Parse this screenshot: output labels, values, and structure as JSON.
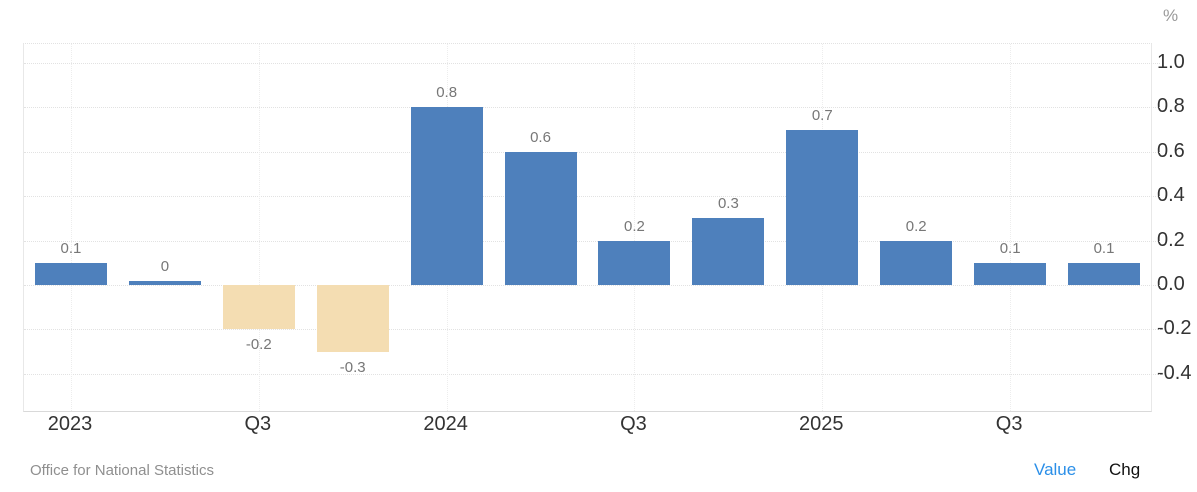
{
  "chart_data": {
    "type": "bar",
    "title": "",
    "unit": "%",
    "values": [
      0.1,
      0,
      -0.2,
      -0.3,
      0.8,
      0.6,
      0.2,
      0.3,
      0.7,
      0.2,
      0.1,
      0.1
    ],
    "bar_value_labels": [
      "0.1",
      "0",
      "-0.2",
      "-0.3",
      "0.8",
      "0.6",
      "0.2",
      "0.3",
      "0.7",
      "0.2",
      "0.1",
      "0.1"
    ],
    "x_labels": [
      "2023",
      "Q3",
      "2024",
      "Q3",
      "2025",
      "Q3"
    ],
    "x_label_bar_positions": [
      0,
      2,
      4,
      6,
      8,
      10
    ],
    "y_ticks": [
      1.0,
      0.8,
      0.6,
      0.4,
      0.2,
      0.0,
      -0.2,
      -0.4
    ],
    "y_tick_labels": [
      "1.0",
      "0.8",
      "0.6",
      "0.4",
      "0.2",
      "0.0",
      "-0.2",
      "-0.4"
    ],
    "ylim": [
      -0.568,
      1.086
    ],
    "grid": true,
    "legend_position": "none",
    "colors": {
      "positive_bar": "#4e80bc",
      "negative_bar": "#f4ddb2",
      "grid_line": "#e2e2e2",
      "axis_text": "#333333",
      "value_label": "#777777",
      "unit_text": "#999999"
    }
  },
  "footer": {
    "source": "Office for National Statistics",
    "view_toggles": [
      {
        "label": "Value",
        "active": true,
        "color": "#2b8fe8"
      },
      {
        "label": "Chg",
        "active": false,
        "color": "#111111"
      }
    ]
  }
}
